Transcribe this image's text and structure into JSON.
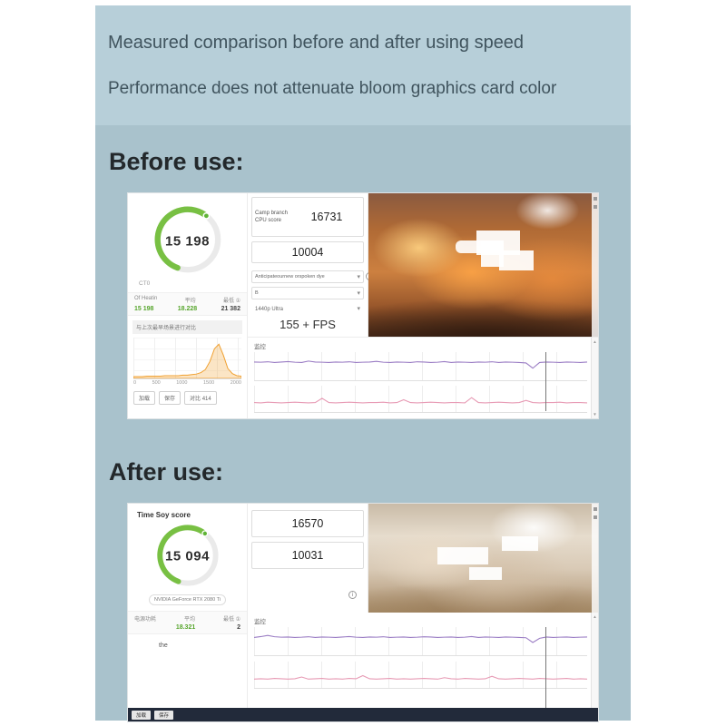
{
  "header": {
    "line1": "Measured comparison before and after using speed",
    "line2": "Performance does not attenuate bloom graphics card color"
  },
  "sections": {
    "before_label": "Before use:",
    "after_label": "After use:"
  },
  "icons": {
    "info": "i",
    "chevron_down": "▾",
    "scroll_up": "▲",
    "scroll_down": "▼"
  },
  "colors": {
    "header_band_bg": "#b7cfd9",
    "panel_bg": "#a9c2cc",
    "gauge_green": "#78c043",
    "stat_green": "#56a52c",
    "monitor_purple": "#9a7cc4",
    "monitor_pink": "#e79ab4",
    "histogram_orange": "#f0a030",
    "taskbar_dark": "#222a3a"
  },
  "before": {
    "gauge_score": "15 198",
    "gauge_caption": "CT0",
    "stats": {
      "name": "Of Heatin",
      "avg_label": "平均",
      "min_label": "最低 ①",
      "score": "15 198",
      "avg": "18.228",
      "min": "21 382"
    },
    "note": "与上次最早场景进行对比",
    "footer_buttons": [
      "加载",
      "保存",
      "对比 414"
    ],
    "cpu_label": "Camp branch CPU score",
    "cpu_score": "16731",
    "score2": "10004",
    "dropdown1": "Anticipateournew orspoken dye",
    "dropdown2": "B",
    "preset": "1440p Ultra",
    "fps": "155 + FPS",
    "monitor_label": "监控"
  },
  "after": {
    "title": "Time Soy score",
    "gauge_score": "15 094",
    "gpu_name": "NVIDIA GeForce RTX 2080 Ti",
    "stats": {
      "name": "电源功耗",
      "avg_label": "平均",
      "min_label": "最低 ①",
      "avg": "18.321",
      "min": "2"
    },
    "sub_text": "the",
    "score1": "16570",
    "score2": "10031",
    "monitor_label": "监控",
    "footer_buttons": [
      "加载",
      "保存"
    ]
  },
  "chart_data": [
    {
      "id": "before_gpu_histogram",
      "type": "area",
      "color": "#f0a030",
      "fill": "rgba(240,160,48,0.28)",
      "x_range": [
        0,
        2000
      ],
      "x_ticks": [
        "0",
        "500",
        "1000",
        "1500",
        "2000"
      ],
      "ymin": 0,
      "ymax": 70,
      "values": [
        0,
        0,
        0,
        1,
        1,
        1,
        1,
        2,
        2,
        2,
        2,
        3,
        3,
        4,
        5,
        8,
        14,
        30,
        55,
        64,
        42,
        16,
        6,
        2,
        1
      ]
    },
    {
      "id": "before_monitor_line1",
      "type": "line",
      "color": "#9a7cc4",
      "ymin": 0,
      "ymax": 100,
      "values": [
        72,
        71,
        73,
        70,
        72,
        74,
        71,
        70,
        76,
        72,
        71,
        70,
        72,
        71,
        73,
        70,
        71,
        72,
        75,
        71,
        70,
        72,
        71,
        70,
        73,
        72,
        70,
        71,
        74,
        70,
        72,
        71,
        70,
        72,
        71,
        73,
        70,
        72,
        71,
        70,
        68,
        45,
        70,
        72,
        71,
        70,
        72,
        71,
        70,
        72
      ]
    },
    {
      "id": "before_monitor_line2",
      "type": "line",
      "color": "#e79ab4",
      "ymin": 0,
      "ymax": 60,
      "values": [
        22,
        21,
        23,
        22,
        21,
        22,
        23,
        22,
        21,
        22,
        34,
        22,
        21,
        22,
        23,
        22,
        21,
        22,
        22,
        23,
        21,
        22,
        30,
        22,
        21,
        22,
        23,
        22,
        21,
        22,
        22,
        21,
        36,
        22,
        21,
        22,
        23,
        22,
        21,
        22,
        28,
        22,
        21,
        22,
        22,
        23,
        21,
        22,
        22,
        21
      ]
    },
    {
      "id": "after_monitor_line1",
      "type": "line",
      "color": "#9a7cc4",
      "ymin": 0,
      "ymax": 100,
      "values": [
        70,
        74,
        79,
        73,
        71,
        72,
        70,
        71,
        73,
        70,
        72,
        71,
        70,
        72,
        74,
        71,
        70,
        72,
        71,
        73,
        70,
        71,
        72,
        70,
        71,
        73,
        72,
        70,
        71,
        72,
        70,
        71,
        74,
        70,
        72,
        71,
        70,
        72,
        71,
        70,
        69,
        48,
        66,
        72,
        70,
        71,
        72,
        70,
        71,
        72
      ]
    },
    {
      "id": "after_monitor_line2",
      "type": "line",
      "color": "#e79ab4",
      "ymin": 0,
      "ymax": 60,
      "values": [
        20,
        21,
        20,
        22,
        21,
        20,
        21,
        26,
        20,
        21,
        22,
        20,
        21,
        20,
        22,
        21,
        30,
        21,
        20,
        21,
        22,
        20,
        21,
        20,
        21,
        22,
        21,
        20,
        24,
        21,
        20,
        22,
        21,
        20,
        21,
        28,
        21,
        20,
        21,
        22,
        21,
        20,
        22,
        21,
        20,
        21,
        22,
        20,
        21,
        20
      ]
    }
  ]
}
